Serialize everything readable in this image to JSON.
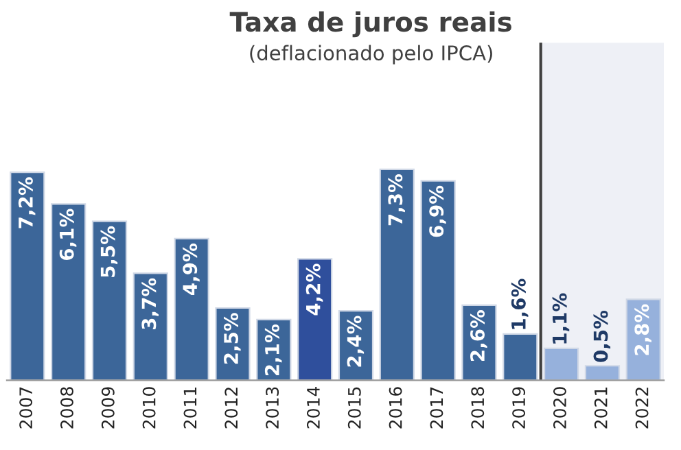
{
  "chart_data": {
    "type": "bar",
    "title": "Taxa de juros reais",
    "subtitle": "(deflacionado pelo IPCA)",
    "categories": [
      "2007",
      "2008",
      "2009",
      "2010",
      "2011",
      "2012",
      "2013",
      "2014",
      "2015",
      "2016",
      "2017",
      "2018",
      "2019",
      "2020",
      "2021",
      "2022"
    ],
    "values": [
      7.2,
      6.1,
      5.5,
      3.7,
      4.9,
      2.5,
      2.1,
      4.2,
      2.4,
      7.3,
      6.9,
      2.6,
      1.6,
      1.1,
      0.5,
      2.8
    ],
    "colors": [
      "#3c6699",
      "#3c6699",
      "#3c6699",
      "#3c6699",
      "#3c6699",
      "#3c6699",
      "#3c6699",
      "#2f4f9c",
      "#3c6699",
      "#3c6699",
      "#3c6699",
      "#3c6699",
      "#3c6699",
      "#96b1dc",
      "#96b1dc",
      "#96b1dc"
    ],
    "value_labels": [
      "7,2%",
      "6,1%",
      "5,5%",
      "3,7%",
      "4,9%",
      "2,5%",
      "2,1%",
      "4,2%",
      "2,4%",
      "7,3%",
      "6,9%",
      "2,6%",
      "1,6%",
      "1,1%",
      "0,5%",
      "2,8%"
    ],
    "bands": [
      {
        "axis": "x",
        "from": "2020",
        "to": "2022",
        "color": "#eef0f6"
      }
    ],
    "grid": false,
    "legend": false
  }
}
